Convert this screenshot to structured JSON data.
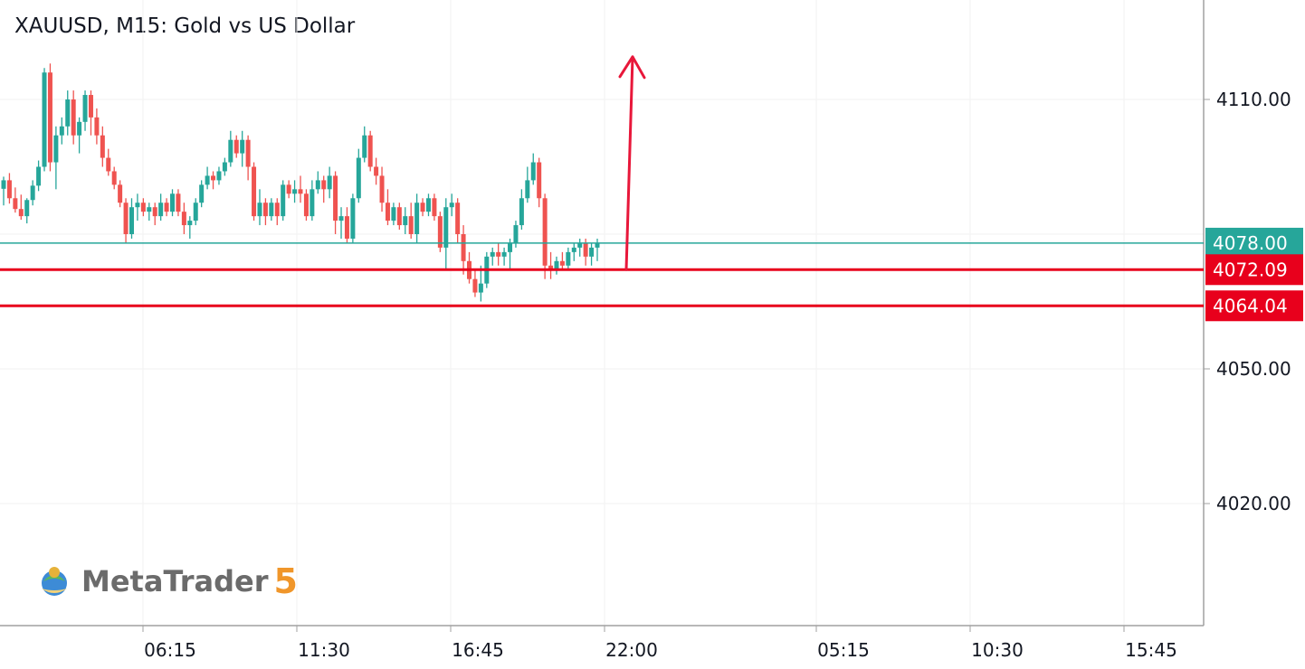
{
  "title": "XAUUSD, M15: Gold vs US Dollar",
  "logo": {
    "text": "MetaTrader",
    "number": "5"
  },
  "colors": {
    "up": "#26a69a",
    "down": "#ef5350",
    "level": "#e8001c",
    "current": "#26a69a",
    "arrow": "#e8173a",
    "grid": "#f2f2f2",
    "axis": "#a0a0a0"
  },
  "chart_data": {
    "type": "candlestick",
    "symbol": "XAUUSD",
    "timeframe": "M15",
    "ylim": [
      4000,
      4130
    ],
    "yticks": [
      4110,
      4050,
      4020
    ],
    "ytick_labels": [
      "4110.00",
      "4050.00",
      "4020.00"
    ],
    "xtick_labels": [
      "06:15",
      "11:30",
      "16:45",
      "22:00",
      "05:15",
      "10:30",
      "15:45"
    ],
    "current_price": {
      "value": 4078.0,
      "label": "4078.00"
    },
    "horizontal_levels": [
      {
        "value": 4072.09,
        "label": "4072.09"
      },
      {
        "value": 4064.04,
        "label": "4064.04"
      }
    ],
    "annotation_arrow": {
      "from_price": 4072.09,
      "to_price": 4119.5,
      "direction": "up"
    },
    "candles": [
      [
        4090.1,
        4092.8,
        4086.4,
        4092.0
      ],
      [
        4092.0,
        4093.6,
        4086.8,
        4088.0
      ],
      [
        4088.0,
        4090.4,
        4084.8,
        4085.6
      ],
      [
        4085.6,
        4088.8,
        4083.2,
        4084.0
      ],
      [
        4084.0,
        4088.0,
        4082.4,
        4087.6
      ],
      [
        4087.6,
        4092.0,
        4086.4,
        4090.8
      ],
      [
        4090.8,
        4096.4,
        4089.6,
        4095.0
      ],
      [
        4095.0,
        4117.0,
        4094.0,
        4116.0
      ],
      [
        4116.0,
        4118.0,
        4094.0,
        4096.0
      ],
      [
        4096.0,
        4104.0,
        4090.0,
        4102.0
      ],
      [
        4102.0,
        4106.0,
        4100.0,
        4104.0
      ],
      [
        4104.0,
        4112.0,
        4102.0,
        4110.0
      ],
      [
        4110.0,
        4112.0,
        4100.0,
        4102.0
      ],
      [
        4102.0,
        4106.0,
        4098.0,
        4105.0
      ],
      [
        4105.0,
        4112.0,
        4103.0,
        4111.0
      ],
      [
        4111.0,
        4112.0,
        4102.0,
        4106.0
      ],
      [
        4106.0,
        4108.0,
        4100.0,
        4102.0
      ],
      [
        4102.0,
        4104.0,
        4095.0,
        4097.0
      ],
      [
        4097.0,
        4099.0,
        4093.0,
        4094.0
      ],
      [
        4094.0,
        4095.0,
        4090.0,
        4091.0
      ],
      [
        4091.0,
        4092.0,
        4086.0,
        4087.0
      ],
      [
        4087.0,
        4088.0,
        4078.0,
        4080.0
      ],
      [
        4080.0,
        4088.0,
        4079.0,
        4086.0
      ],
      [
        4086.0,
        4089.0,
        4083.0,
        4087.0
      ],
      [
        4087.0,
        4088.0,
        4084.0,
        4085.0
      ],
      [
        4085.0,
        4087.0,
        4083.0,
        4086.0
      ],
      [
        4086.0,
        4087.0,
        4082.0,
        4084.0
      ],
      [
        4084.0,
        4089.0,
        4083.0,
        4087.0
      ],
      [
        4087.0,
        4088.0,
        4084.0,
        4085.0
      ],
      [
        4085.0,
        4090.0,
        4084.0,
        4089.0
      ],
      [
        4089.0,
        4090.0,
        4084.0,
        4085.0
      ],
      [
        4085.0,
        4087.0,
        4080.0,
        4082.0
      ],
      [
        4082.0,
        4084.0,
        4079.0,
        4083.0
      ],
      [
        4083.0,
        4088.0,
        4082.0,
        4087.0
      ],
      [
        4087.0,
        4092.0,
        4086.0,
        4091.0
      ],
      [
        4091.0,
        4095.0,
        4090.0,
        4093.0
      ],
      [
        4093.0,
        4094.0,
        4090.0,
        4092.0
      ],
      [
        4092.0,
        4095.0,
        4091.0,
        4094.0
      ],
      [
        4094.0,
        4097.0,
        4093.0,
        4096.0
      ],
      [
        4096.0,
        4103.0,
        4095.0,
        4101.0
      ],
      [
        4101.0,
        4102.0,
        4097.0,
        4098.0
      ],
      [
        4098.0,
        4103.0,
        4095.0,
        4101.0
      ],
      [
        4101.0,
        4102.0,
        4092.0,
        4095.0
      ],
      [
        4095.0,
        4096.0,
        4083.0,
        4084.0
      ],
      [
        4084.0,
        4090.0,
        4082.0,
        4087.0
      ],
      [
        4087.0,
        4088.0,
        4082.0,
        4084.0
      ],
      [
        4084.0,
        4088.0,
        4083.0,
        4087.0
      ],
      [
        4087.0,
        4088.0,
        4082.0,
        4084.0
      ],
      [
        4084.0,
        4092.0,
        4083.0,
        4091.0
      ],
      [
        4091.0,
        4092.0,
        4088.0,
        4089.0
      ],
      [
        4089.0,
        4092.0,
        4087.0,
        4090.0
      ],
      [
        4090.0,
        4093.0,
        4087.0,
        4089.0
      ],
      [
        4089.0,
        4090.0,
        4083.0,
        4084.0
      ],
      [
        4084.0,
        4092.0,
        4083.0,
        4090.0
      ],
      [
        4090.0,
        4094.0,
        4089.0,
        4092.0
      ],
      [
        4092.0,
        4093.0,
        4087.0,
        4090.0
      ],
      [
        4090.0,
        4095.0,
        4088.0,
        4093.0
      ],
      [
        4093.0,
        4094.0,
        4080.0,
        4083.0
      ],
      [
        4083.0,
        4086.0,
        4079.0,
        4084.0
      ],
      [
        4084.0,
        4086.0,
        4078.0,
        4079.0
      ],
      [
        4079.0,
        4089.0,
        4078.0,
        4088.0
      ],
      [
        4088.0,
        4099.0,
        4087.0,
        4097.0
      ],
      [
        4097.0,
        4104.0,
        4096.0,
        4102.0
      ],
      [
        4102.0,
        4103.0,
        4094.0,
        4095.0
      ],
      [
        4095.0,
        4097.0,
        4091.0,
        4093.0
      ],
      [
        4093.0,
        4095.0,
        4085.0,
        4087.0
      ],
      [
        4087.0,
        4090.0,
        4082.0,
        4083.0
      ],
      [
        4083.0,
        4087.0,
        4082.0,
        4086.0
      ],
      [
        4086.0,
        4087.0,
        4081.0,
        4082.0
      ],
      [
        4082.0,
        4086.0,
        4080.0,
        4084.0
      ],
      [
        4084.0,
        4087.0,
        4079.0,
        4080.0
      ],
      [
        4080.0,
        4089.0,
        4078.0,
        4087.0
      ],
      [
        4087.0,
        4088.0,
        4084.0,
        4085.0
      ],
      [
        4085.0,
        4089.0,
        4084.0,
        4088.0
      ],
      [
        4088.0,
        4089.0,
        4083.0,
        4084.0
      ],
      [
        4084.0,
        4085.0,
        4076.0,
        4077.0
      ],
      [
        4077.0,
        4088.0,
        4072.0,
        4086.0
      ],
      [
        4086.0,
        4089.0,
        4084.0,
        4087.0
      ],
      [
        4087.0,
        4088.0,
        4078.0,
        4080.0
      ],
      [
        4080.0,
        4082.0,
        4071.0,
        4074.0
      ],
      [
        4074.0,
        4076.0,
        4069.0,
        4070.0
      ],
      [
        4070.0,
        4072.0,
        4066.0,
        4067.0
      ],
      [
        4067.0,
        4073.0,
        4065.0,
        4069.0
      ],
      [
        4069.0,
        4076.0,
        4068.0,
        4075.0
      ],
      [
        4075.0,
        4077.0,
        4073.0,
        4076.0
      ],
      [
        4076.0,
        4078.0,
        4073.0,
        4075.0
      ],
      [
        4075.0,
        4077.0,
        4073.0,
        4076.0
      ],
      [
        4076.0,
        4079.0,
        4072.0,
        4078.0
      ],
      [
        4078.0,
        4083.0,
        4077.0,
        4082.0
      ],
      [
        4082.0,
        4090.0,
        4081.0,
        4088.0
      ],
      [
        4088.0,
        4095.0,
        4087.0,
        4092.0
      ],
      [
        4092.0,
        4098.0,
        4091.0,
        4096.0
      ],
      [
        4096.0,
        4097.0,
        4086.0,
        4088.0
      ],
      [
        4088.0,
        4089.0,
        4070.0,
        4073.0
      ],
      [
        4073.0,
        4076.0,
        4070.0,
        4072.0
      ],
      [
        4072.0,
        4075.0,
        4071.0,
        4074.0
      ],
      [
        4074.0,
        4076.0,
        4072.0,
        4073.0
      ],
      [
        4073.0,
        4077.0,
        4072.0,
        4076.0
      ],
      [
        4076.0,
        4078.0,
        4074.0,
        4077.0
      ],
      [
        4077.0,
        4079.0,
        4075.0,
        4078.0
      ],
      [
        4078.0,
        4079.0,
        4073.0,
        4075.0
      ],
      [
        4075.0,
        4078.0,
        4073.0,
        4077.0
      ],
      [
        4077.0,
        4079.0,
        4074.0,
        4078.0
      ]
    ]
  }
}
